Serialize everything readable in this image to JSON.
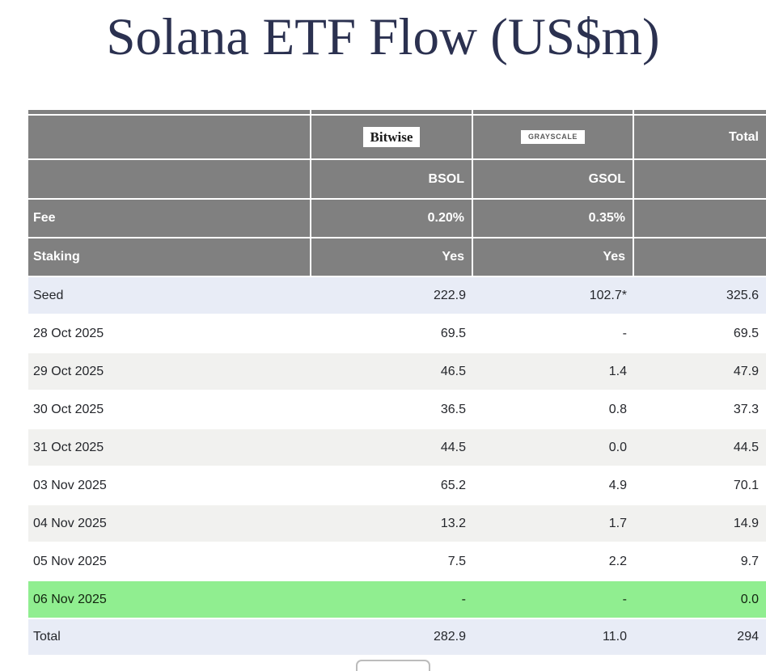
{
  "title": "Solana ETF Flow (US$m)",
  "table": {
    "logos": {
      "bitwise": "Bitwise",
      "grayscale": "GRAYSCALE",
      "total_label": "Total"
    },
    "tickers": {
      "bsol": "BSOL",
      "gsol": "GSOL"
    },
    "meta_rows": [
      {
        "label": "Fee",
        "bsol": "0.20%",
        "gsol": "0.35%",
        "total": ""
      },
      {
        "label": "Staking",
        "bsol": "Yes",
        "gsol": "Yes",
        "total": ""
      }
    ],
    "data_rows": [
      {
        "label": "Seed",
        "bsol": "222.9",
        "gsol": "102.7*",
        "total": "325.6",
        "highlight": "blue"
      },
      {
        "label": "28 Oct 2025",
        "bsol": "69.5",
        "gsol": "-",
        "total": "69.5",
        "highlight": "white"
      },
      {
        "label": "29 Oct 2025",
        "bsol": "46.5",
        "gsol": "1.4",
        "total": "47.9",
        "highlight": "gray"
      },
      {
        "label": "30 Oct 2025",
        "bsol": "36.5",
        "gsol": "0.8",
        "total": "37.3",
        "highlight": "white"
      },
      {
        "label": "31 Oct 2025",
        "bsol": "44.5",
        "gsol": "0.0",
        "total": "44.5",
        "highlight": "gray"
      },
      {
        "label": "03 Nov 2025",
        "bsol": "65.2",
        "gsol": "4.9",
        "total": "70.1",
        "highlight": "white"
      },
      {
        "label": "04 Nov 2025",
        "bsol": "13.2",
        "gsol": "1.7",
        "total": "14.9",
        "highlight": "gray"
      },
      {
        "label": "05 Nov 2025",
        "bsol": "7.5",
        "gsol": "2.2",
        "total": "9.7",
        "highlight": "white"
      },
      {
        "label": "06 Nov 2025",
        "bsol": "-",
        "gsol": "-",
        "total": "0.0",
        "highlight": "green"
      },
      {
        "label": "Total",
        "bsol": "282.9",
        "gsol": "11.0",
        "total": "294",
        "highlight": "blue"
      }
    ]
  },
  "colors": {
    "header_gray": "#808080",
    "row_blue": "#e8ecf6",
    "row_alt_gray": "#f1f1ef",
    "row_green": "#90ee90",
    "title_navy": "#2b3150",
    "header_text": "#ffffff",
    "body_text": "#24262b"
  },
  "chart_data": {
    "type": "table",
    "title": "Solana ETF Flow (US$m)",
    "columns": [
      "",
      "BSOL (Bitwise)",
      "GSOL (Grayscale)",
      "Total"
    ],
    "fees": {
      "BSOL": "0.20%",
      "GSOL": "0.35%"
    },
    "staking": {
      "BSOL": "Yes",
      "GSOL": "Yes"
    },
    "rows": [
      {
        "label": "Seed",
        "BSOL": 222.9,
        "GSOL": 102.7,
        "Total": 325.6,
        "note": "GSOL value shown as 102.7*"
      },
      {
        "label": "28 Oct 2025",
        "BSOL": 69.5,
        "GSOL": null,
        "Total": 69.5
      },
      {
        "label": "29 Oct 2025",
        "BSOL": 46.5,
        "GSOL": 1.4,
        "Total": 47.9
      },
      {
        "label": "30 Oct 2025",
        "BSOL": 36.5,
        "GSOL": 0.8,
        "Total": 37.3
      },
      {
        "label": "31 Oct 2025",
        "BSOL": 44.5,
        "GSOL": 0.0,
        "Total": 44.5
      },
      {
        "label": "03 Nov 2025",
        "BSOL": 65.2,
        "GSOL": 4.9,
        "Total": 70.1
      },
      {
        "label": "04 Nov 2025",
        "BSOL": 13.2,
        "GSOL": 1.7,
        "Total": 14.9
      },
      {
        "label": "05 Nov 2025",
        "BSOL": 7.5,
        "GSOL": 2.2,
        "Total": 9.7
      },
      {
        "label": "06 Nov 2025",
        "BSOL": null,
        "GSOL": null,
        "Total": 0.0,
        "note": "highlighted green (current day)"
      },
      {
        "label": "Total",
        "BSOL": 282.9,
        "GSOL": 11.0,
        "Total": 294
      }
    ]
  }
}
